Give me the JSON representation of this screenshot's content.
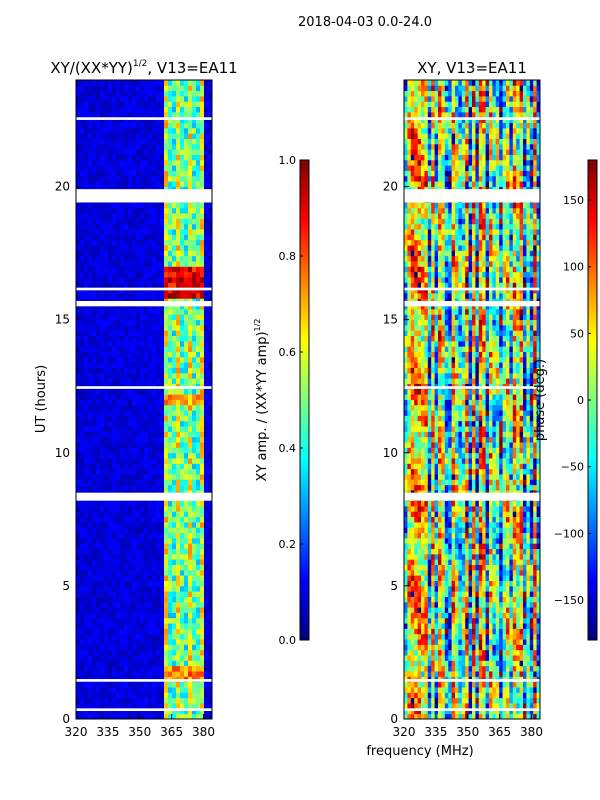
{
  "suptitle": "2018-04-03 0.0-24.0",
  "xlabel": "frequency (MHz)",
  "colors": {
    "background": "#ffffff",
    "blank_rows": "#ffffff",
    "jet_stops": [
      "#00007f",
      "#0000ff",
      "#007fff",
      "#00ffff",
      "#7fff7f",
      "#ffff00",
      "#ff7f00",
      "#ff0000",
      "#7f0000"
    ]
  },
  "chart_data": [
    {
      "type": "heatmap",
      "title_main": "XY/(XX*YY)",
      "title_sup": "1/2",
      "title_tail": ", V13=EA11",
      "xlabel": "frequency (MHz)",
      "ylabel": "UT (hours)",
      "xlim": [
        320,
        384
      ],
      "ylim": [
        0,
        24
      ],
      "x_ticks": [
        320,
        335,
        350,
        365,
        380
      ],
      "y_ticks": [
        0,
        5,
        10,
        15,
        20
      ],
      "colorbar": {
        "label_main": "XY amp. / (XX*YY amp)",
        "label_sup": "1/2",
        "range": [
          0.0,
          1.0
        ],
        "ticks": [
          0.0,
          0.2,
          0.4,
          0.6,
          0.8,
          1.0
        ],
        "tick_labels": [
          "0.0",
          "0.2",
          "0.4",
          "0.6",
          "0.8",
          "1.0"
        ]
      },
      "blank_intervals_hours": [
        [
          19.4,
          19.9
        ],
        [
          8.2,
          8.5
        ],
        [
          15.5,
          15.7
        ],
        [
          16.1,
          16.2
        ],
        [
          1.4,
          1.5
        ],
        [
          0.3,
          0.4
        ],
        [
          22.5,
          22.6
        ],
        [
          12.4,
          12.5
        ]
      ],
      "bright_band_mhz": [
        361,
        381
      ],
      "hot_regions": [
        {
          "hours": [
            15.8,
            17.0
          ],
          "level": 0.9
        },
        {
          "hours": [
            1.5,
            2.0
          ],
          "level": 0.75
        },
        {
          "hours": [
            11.8,
            12.2
          ],
          "level": 0.7
        }
      ]
    },
    {
      "type": "heatmap",
      "title_main": "XY, V13=EA11",
      "xlabel": "frequency (MHz)",
      "xlim": [
        320,
        384
      ],
      "ylim": [
        0,
        24
      ],
      "x_ticks": [
        320,
        335,
        350,
        365,
        380
      ],
      "y_ticks": [
        0,
        5,
        10,
        15,
        20
      ],
      "colorbar": {
        "label_main": "phase (deg.)",
        "range": [
          -180,
          180
        ],
        "ticks": [
          -150,
          -100,
          -50,
          0,
          50,
          100,
          150
        ],
        "tick_labels": [
          "−150",
          "−100",
          "−50",
          "0",
          "50",
          "100",
          "150"
        ]
      },
      "blank_intervals_hours": [
        [
          19.4,
          19.9
        ],
        [
          8.2,
          8.5
        ],
        [
          15.5,
          15.7
        ],
        [
          16.1,
          16.2
        ],
        [
          1.4,
          1.5
        ],
        [
          0.3,
          0.4
        ],
        [
          22.5,
          22.6
        ],
        [
          12.4,
          12.5
        ]
      ]
    }
  ]
}
